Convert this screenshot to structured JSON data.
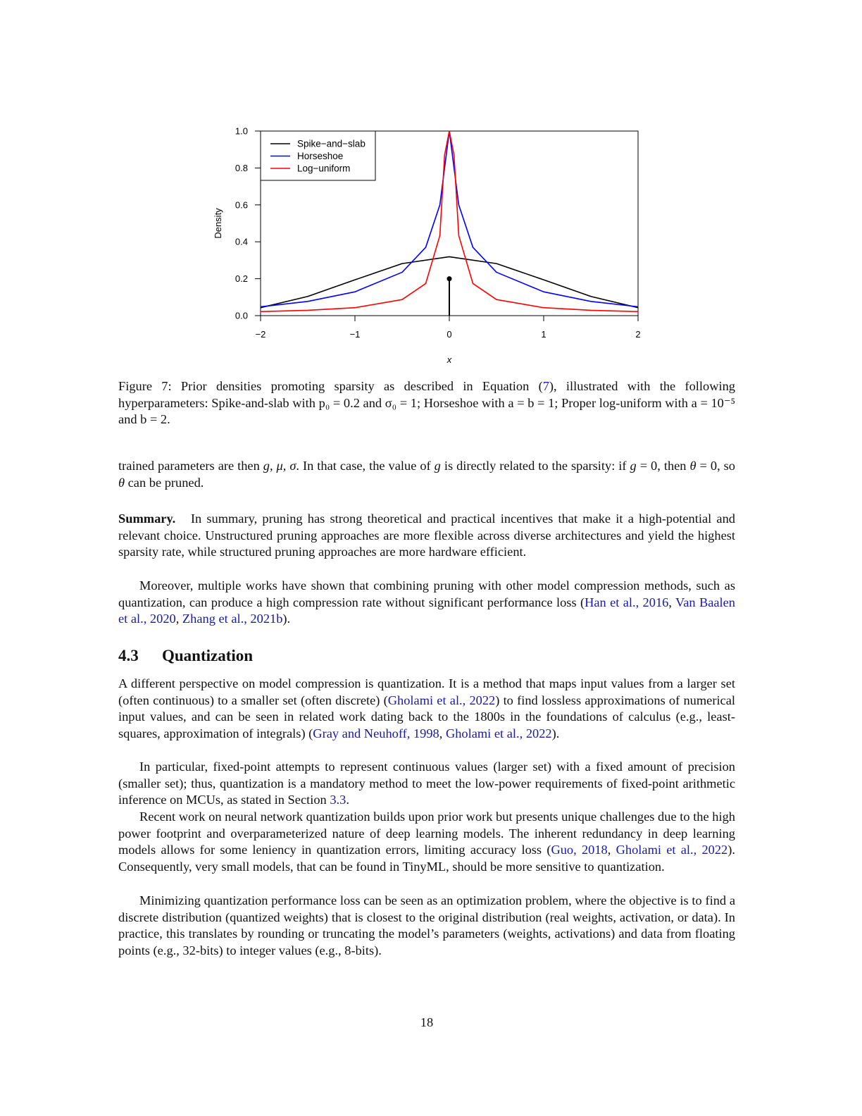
{
  "figure": {
    "caption": {
      "label": "Figure 7:",
      "before_ref": "Prior densities promoting sparsity as described in Equation (",
      "ref": "7",
      "after_ref": "), illustrated with the following hyperparameters: Spike-and-slab with p₀ = 0.2 and σ₀ = 1; Horseshoe with a = b = 1; Proper log-uniform with a = 10⁻⁵ and b = 2."
    }
  },
  "chart_data": {
    "type": "line",
    "xlabel": "x",
    "ylabel": "Density",
    "xlim": [
      -2,
      2
    ],
    "ylim": [
      0,
      1
    ],
    "x_ticks": [
      "−2",
      "−1",
      "0",
      "1",
      "2"
    ],
    "y_ticks": [
      "0.0",
      "0.2",
      "0.4",
      "0.6",
      "0.8",
      "1.0"
    ],
    "grid": false,
    "legend_position": "top-left",
    "series": [
      {
        "name": "Spike−and−slab",
        "color": "#000000",
        "x": [
          -2,
          -1.5,
          -1,
          -0.5,
          0,
          0.5,
          1,
          1.5,
          2
        ],
        "y": [
          0.043,
          0.104,
          0.194,
          0.282,
          0.319,
          0.282,
          0.194,
          0.104,
          0.043
        ],
        "spike": {
          "x": 0,
          "y": 0.2
        }
      },
      {
        "name": "Horseshoe",
        "color": "#0000ff",
        "x": [
          -2,
          -1.5,
          -1,
          -0.5,
          -0.25,
          -0.1,
          0,
          0.1,
          0.25,
          0.5,
          1,
          1.5,
          2
        ],
        "y": [
          0.048,
          0.077,
          0.129,
          0.235,
          0.37,
          0.6,
          1.0,
          0.6,
          0.37,
          0.235,
          0.129,
          0.077,
          0.048
        ]
      },
      {
        "name": "Log−uniform",
        "color": "#ff0000",
        "x": [
          -2,
          -1.5,
          -1,
          -0.5,
          -0.25,
          -0.1,
          -0.05,
          0,
          0.05,
          0.1,
          0.25,
          0.5,
          1,
          1.5,
          2
        ],
        "y": [
          0.022,
          0.029,
          0.043,
          0.087,
          0.174,
          0.434,
          0.87,
          1.0,
          0.87,
          0.434,
          0.174,
          0.087,
          0.043,
          0.029,
          0.022
        ]
      }
    ]
  },
  "body": {
    "para1": {
      "t1": "trained parameters are then ",
      "m1": "g, μ, σ",
      "t2": ". In that case, the value of ",
      "m2": "g",
      "t3": " is directly related to the sparsity: if ",
      "m3": "g",
      "t4": " = 0, then ",
      "m4": "θ",
      "t5": " = 0, so ",
      "m5": "θ",
      "t6": " can be pruned."
    },
    "summary": {
      "label": "Summary.",
      "text": "In summary, pruning has strong theoretical and practical incentives that make it a high-potential and relevant choice. Unstructured pruning approaches are more flexible across diverse architectures and yield the highest sparsity rate, while structured pruning approaches are more hardware efficient."
    },
    "para3": {
      "text": "Moreover, multiple works have shown that combining pruning with other model compression methods, such as quantization, can produce a high compression rate without significant performance loss (",
      "c1": "Han et al., 2016",
      "sep1": ", ",
      "c2": "Van Baalen et al., 2020",
      "sep2": ", ",
      "c3": "Zhang et al., 2021b",
      "end": ")."
    },
    "section": {
      "number": "4.3",
      "title": "Quantization"
    },
    "para4": {
      "t1": "A different perspective on model compression is quantization. It is a method that maps input values from a larger set (often continuous) to a smaller set (often discrete) (",
      "c1": "Gholami et al., 2022",
      "t2": ") to find lossless approximations of numerical input values, and can be seen in related work dating back to the 1800s in the foundations of calculus (e.g., least-squares, approximation of integrals) (",
      "c2": "Gray and Neuhoff, 1998",
      "sep": ", ",
      "c3": "Gholami et al., 2022",
      "end": ")."
    },
    "para5": {
      "t1": "In particular, fixed-point attempts to represent continuous values (larger set) with a fixed amount of precision (smaller set); thus, quantization is a mandatory method to meet the low-power requirements of fixed-point arithmetic inference on MCUs, as stated in Section ",
      "ref": "3.3",
      "end": "."
    },
    "para6": {
      "t1": "Recent work on neural network quantization builds upon prior work but presents unique challenges due to the high power footprint and overparameterized nature of deep learning models. The inherent redundancy in deep learning models allows for some leniency in quantization errors, limiting accuracy loss (",
      "c1": "Guo, 2018",
      "sep": ", ",
      "c2": "Gholami et al., 2022",
      "t2": "). Consequently, very small models, that can be found in TinyML, should be more sensitive to quantization."
    },
    "para7": {
      "text": "Minimizing quantization performance loss can be seen as an optimization problem, where the objective is to find a discrete distribution (quantized weights) that is closest to the original distribution (real weights, activation, or data). In practice, this translates by rounding or truncating the model’s parameters (weights, activations) and data from floating points (e.g., 32-bits) to integer values (e.g., 8-bits)."
    }
  },
  "page_number": "18"
}
